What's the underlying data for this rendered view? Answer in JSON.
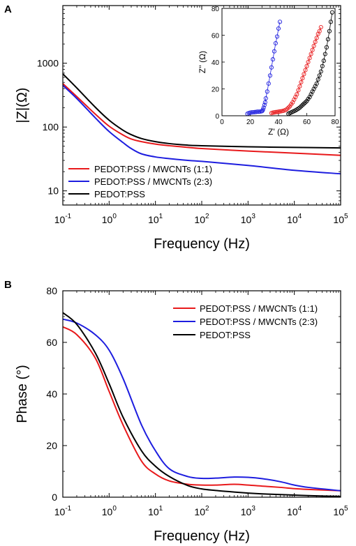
{
  "panel_a_label": "A",
  "panel_b_label": "B",
  "colors": {
    "pedot_mwcnt_1_1": "#e8191b",
    "pedot_mwcnt_2_3": "#1d1ddf",
    "pedot_pss": "#000000"
  },
  "chart_data": [
    {
      "id": "A",
      "type": "line",
      "xlabel": "Frequency (Hz)",
      "ylabel": "|Z|(Ω)",
      "xscale": "log",
      "yscale": "log",
      "xlim": [
        0.1,
        100000
      ],
      "ylim": [
        6,
        8000
      ],
      "xticks": [
        0.1,
        1,
        10,
        100,
        1000,
        10000,
        100000
      ],
      "xtick_labels": [
        [
          "10",
          "-1"
        ],
        [
          "10",
          "0"
        ],
        [
          "10",
          "1"
        ],
        [
          "10",
          "2"
        ],
        [
          "10",
          "3"
        ],
        [
          "10",
          "4"
        ],
        [
          "10",
          "5"
        ]
      ],
      "yticks": [
        10,
        100,
        1000
      ],
      "ytick_labels": [
        "10",
        "100",
        "1000"
      ],
      "legend_position": "lower-left",
      "series": [
        {
          "name": "PEDOT:PSS / MWCNTs (1:1)",
          "color": "#e8191b",
          "x": [
            0.1,
            0.2,
            0.5,
            1,
            2,
            3,
            5,
            10,
            20,
            50,
            100,
            1000,
            10000,
            100000
          ],
          "y": [
            480,
            300,
            160,
            103,
            75,
            65,
            59,
            54,
            51,
            48,
            46,
            42,
            39,
            36
          ]
        },
        {
          "name": "PEDOT:PSS / MWCNTs (2:3)",
          "color": "#1d1ddf",
          "x": [
            0.1,
            0.2,
            0.5,
            1,
            2,
            3,
            5,
            10,
            20,
            50,
            100,
            1000,
            10000,
            100000
          ],
          "y": [
            450,
            280,
            140,
            85,
            57,
            46,
            38,
            34,
            32,
            30,
            29,
            25,
            21,
            18.5
          ]
        },
        {
          "name": "PEDOT:PSS",
          "color": "#000000",
          "x": [
            0.1,
            0.2,
            0.5,
            1,
            2,
            3,
            5,
            10,
            20,
            50,
            100,
            1000,
            10000,
            100000
          ],
          "y": [
            680,
            410,
            205,
            128,
            89,
            76,
            66,
            59,
            55,
            52,
            51,
            49,
            48,
            47
          ]
        }
      ]
    },
    {
      "id": "A-inset",
      "type": "scatter",
      "xlabel": "Z' (Ω)",
      "ylabel": "Z'' (Ω)",
      "xlim": [
        0,
        80
      ],
      "ylim": [
        0,
        80
      ],
      "xticks": [
        0,
        20,
        40,
        60,
        80
      ],
      "yticks": [
        0,
        20,
        40,
        60,
        80
      ],
      "series": [
        {
          "name": "PEDOT:PSS / MWCNTs (2:3)",
          "color": "#1d1ddf",
          "x": [
            18,
            19,
            20,
            21,
            22,
            23,
            24,
            25,
            26,
            27,
            28,
            28.5,
            29,
            29.5,
            30,
            30.5,
            31,
            32,
            33,
            34,
            35,
            36,
            37,
            38,
            39,
            40,
            41
          ],
          "y": [
            1.5,
            2,
            2.3,
            2.5,
            2.6,
            2.7,
            2.8,
            3,
            3,
            3.1,
            3.3,
            3.6,
            4.5,
            6,
            8,
            10,
            13,
            18,
            24,
            30,
            36,
            42,
            48,
            54,
            59,
            65,
            70
          ]
        },
        {
          "name": "PEDOT:PSS / MWCNTs (1:1)",
          "color": "#e8191b",
          "x": [
            35,
            36,
            37,
            38,
            39,
            40,
            41,
            42,
            43,
            44,
            45,
            46,
            47,
            48,
            49,
            50,
            51,
            52,
            53,
            54,
            55,
            56,
            57,
            58,
            59,
            60,
            61,
            62,
            63,
            64,
            65,
            66,
            67,
            68,
            69,
            70
          ],
          "y": [
            2,
            2.3,
            2.5,
            2.7,
            2.8,
            3,
            3.2,
            3.4,
            3.6,
            3.9,
            4.3,
            5,
            6,
            7,
            8.5,
            10,
            12,
            14,
            16,
            19,
            22,
            25,
            28,
            31,
            34,
            37,
            40,
            43,
            46,
            49,
            52,
            55,
            58,
            61,
            63,
            66
          ]
        },
        {
          "name": "PEDOT:PSS",
          "color": "#000000",
          "x": [
            47,
            48,
            49,
            50,
            51,
            52,
            53,
            54,
            55,
            56,
            57,
            58,
            59,
            60,
            61,
            62,
            63,
            64,
            65,
            66,
            67,
            68,
            69,
            70,
            71,
            72,
            73,
            74,
            75,
            76,
            77,
            78
          ],
          "y": [
            1.5,
            2,
            2.5,
            3,
            3.5,
            4,
            4.6,
            5.3,
            6,
            7,
            8,
            9,
            10,
            11,
            12.5,
            14,
            16,
            18,
            20,
            22,
            24,
            27,
            30,
            33,
            37,
            41,
            46,
            51,
            57,
            63,
            70,
            77
          ]
        }
      ]
    },
    {
      "id": "B",
      "type": "line",
      "xlabel": "Frequency (Hz)",
      "ylabel": "Phase (°)",
      "xscale": "log",
      "xlim": [
        0.1,
        100000
      ],
      "ylim": [
        0,
        80
      ],
      "xticks": [
        0.1,
        1,
        10,
        100,
        1000,
        10000,
        100000
      ],
      "xtick_labels": [
        [
          "10",
          "-1"
        ],
        [
          "10",
          "0"
        ],
        [
          "10",
          "1"
        ],
        [
          "10",
          "2"
        ],
        [
          "10",
          "3"
        ],
        [
          "10",
          "4"
        ],
        [
          "10",
          "5"
        ]
      ],
      "yticks": [
        0,
        20,
        40,
        60,
        80
      ],
      "ytick_labels": [
        "0",
        "20",
        "40",
        "60",
        "80"
      ],
      "legend_position": "top-right",
      "series": [
        {
          "name": "PEDOT:PSS / MWCNTs (1:1)",
          "color": "#e8191b",
          "x": [
            0.1,
            0.2,
            0.5,
            1,
            2,
            5,
            10,
            20,
            50,
            100,
            200,
            500,
            1000,
            2000,
            5000,
            10000,
            20000,
            100000
          ],
          "y": [
            66,
            63,
            54,
            41,
            28,
            14,
            9,
            6.3,
            5,
            4.7,
            4.7,
            5,
            4.7,
            4.3,
            3.8,
            3.3,
            3,
            2.5
          ]
        },
        {
          "name": "PEDOT:PSS / MWCNTs (2:3)",
          "color": "#1d1ddf",
          "x": [
            0.1,
            0.2,
            0.5,
            1,
            2,
            5,
            10,
            20,
            50,
            100,
            200,
            500,
            1000,
            2000,
            5000,
            10000,
            20000,
            100000
          ],
          "y": [
            69,
            67.5,
            63,
            57,
            46,
            28,
            18,
            11,
            8,
            7.3,
            7.4,
            7.8,
            7.7,
            7.2,
            6,
            4.7,
            3.8,
            2.5
          ]
        },
        {
          "name": "PEDOT:PSS",
          "color": "#000000",
          "x": [
            0.1,
            0.2,
            0.5,
            1,
            2,
            5,
            10,
            20,
            50,
            100,
            200,
            500,
            1000,
            2000,
            5000,
            10000,
            20000,
            100000
          ],
          "y": [
            71.5,
            67,
            56,
            44,
            31,
            18,
            12,
            8,
            4.5,
            3.2,
            2.6,
            2,
            1.6,
            1.3,
            1,
            0.8,
            0.6,
            0.3
          ]
        }
      ]
    }
  ]
}
